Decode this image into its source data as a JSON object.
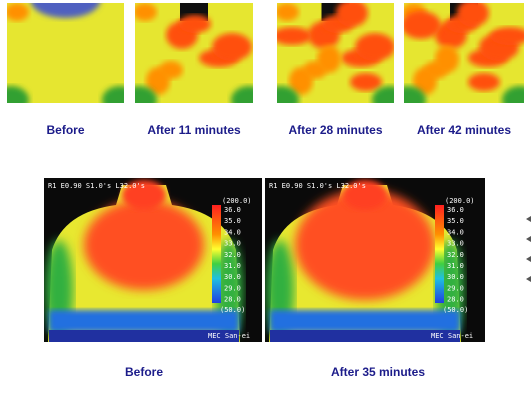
{
  "top_images": [
    {
      "caption": "Before"
    },
    {
      "caption": "After 11 minutes"
    },
    {
      "caption": "After 28 minutes"
    },
    {
      "caption": "After 42 minutes"
    }
  ],
  "bottom_images": [
    {
      "header": "R1 E0.90 S1.0's L32.0's",
      "scale_max": "(200.0)",
      "scale": [
        "36.0",
        "35.0",
        "34.0",
        "33.0",
        "32.0",
        "31.0",
        "30.0",
        "29.0",
        "28.0"
      ],
      "scale_min": "(50.0)",
      "footer": "MEC San-ei",
      "caption": "Before"
    },
    {
      "header": "R1 E0.90 S1.0's L32.0's",
      "scale_max": "(200.0)",
      "scale": [
        "36.0",
        "35.0",
        "34.0",
        "33.0",
        "32.0",
        "31.0",
        "30.0",
        "29.0",
        "28.0"
      ],
      "scale_min": "(50.0)",
      "footer": "MEC San-ei",
      "caption": "After 35 minutes"
    }
  ]
}
